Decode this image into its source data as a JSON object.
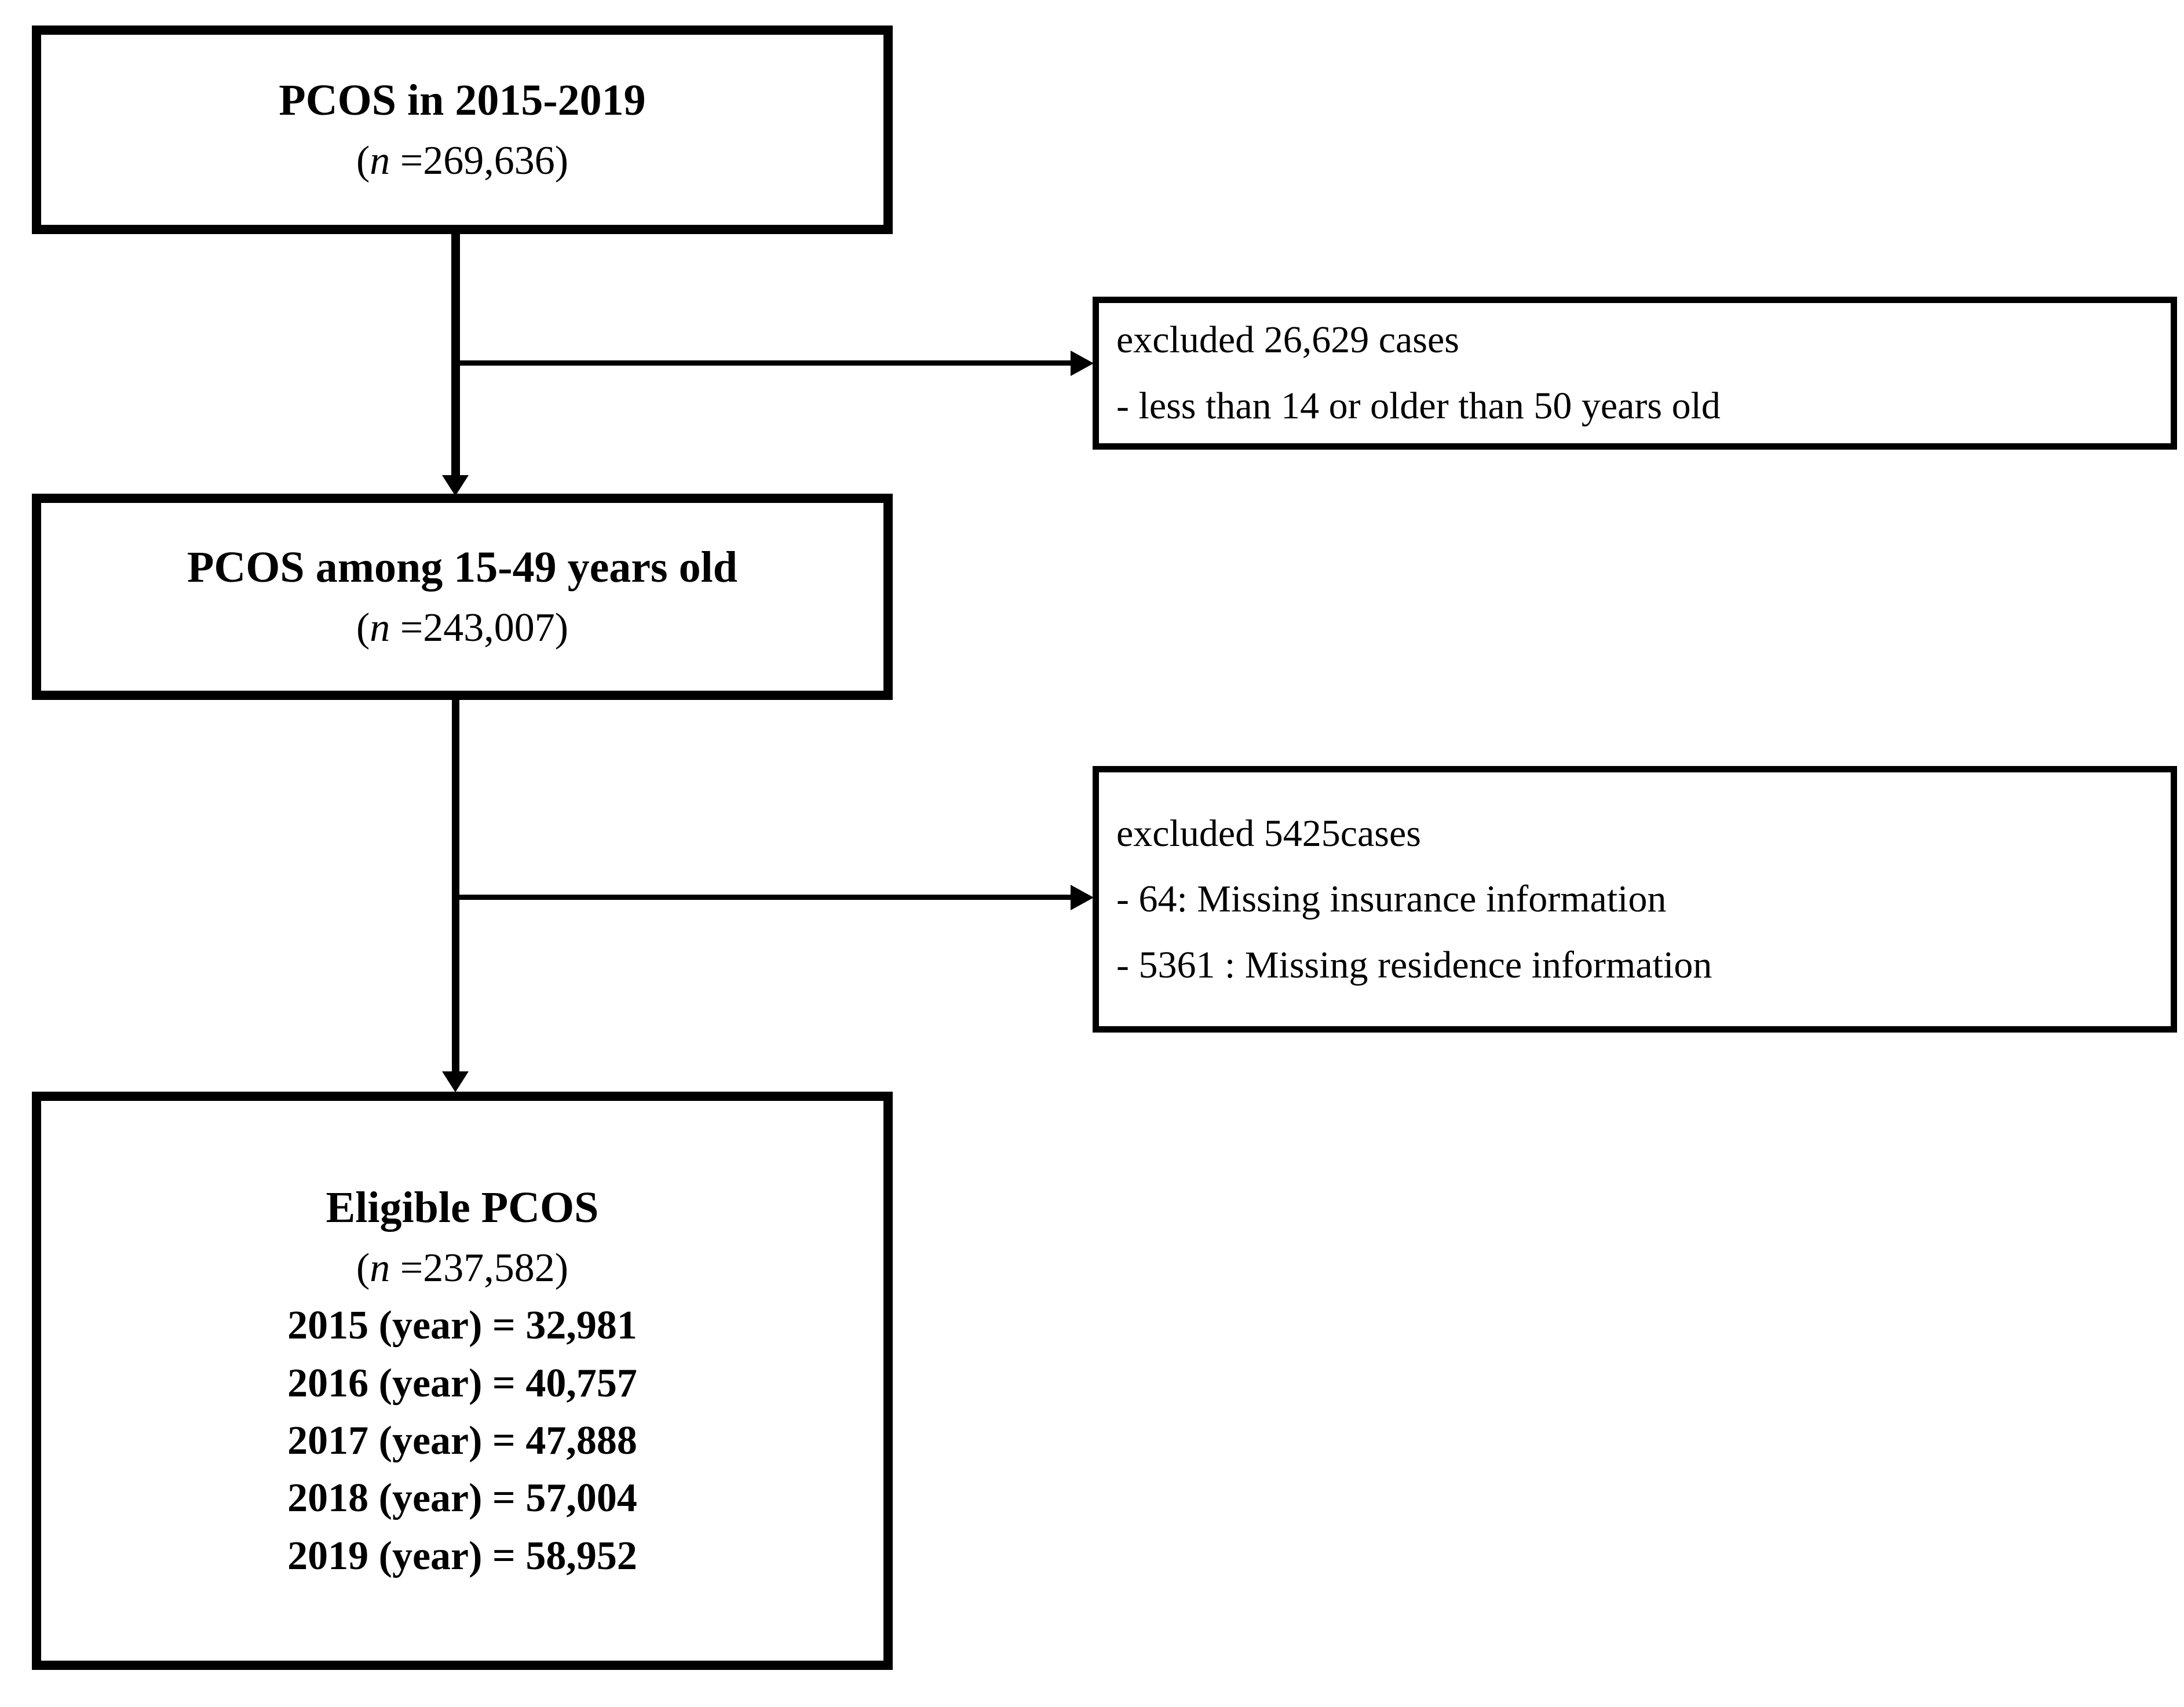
{
  "flow": {
    "step1": {
      "title": "PCOS in 2015-2019",
      "n_parts": [
        "(",
        "n",
        " =269,636)"
      ]
    },
    "exclusion1": {
      "header": "excluded 26,629 cases",
      "reasons": [
        "- less than 14 or older than 50 years old"
      ]
    },
    "step2": {
      "title": "PCOS among 15-49 years old",
      "n_parts": [
        "(",
        "n",
        " =243,007)"
      ]
    },
    "exclusion2": {
      "header": "excluded 5425cases",
      "reasons": [
        "- 64: Missing insurance information",
        "- 5361 : Missing residence information"
      ]
    },
    "step3": {
      "title": "Eligible PCOS",
      "n_parts": [
        "(",
        "n",
        " =237,582)"
      ],
      "year_counts": [
        "2015 (year) = 32,981",
        "2016 (year) = 40,757",
        "2017 (year) = 47,888",
        "2018 (year) = 57,004",
        "2019 (year) = 58,952"
      ]
    },
    "colors": {
      "line": "#000000",
      "text": "#000000",
      "background": "#ffffff"
    }
  }
}
